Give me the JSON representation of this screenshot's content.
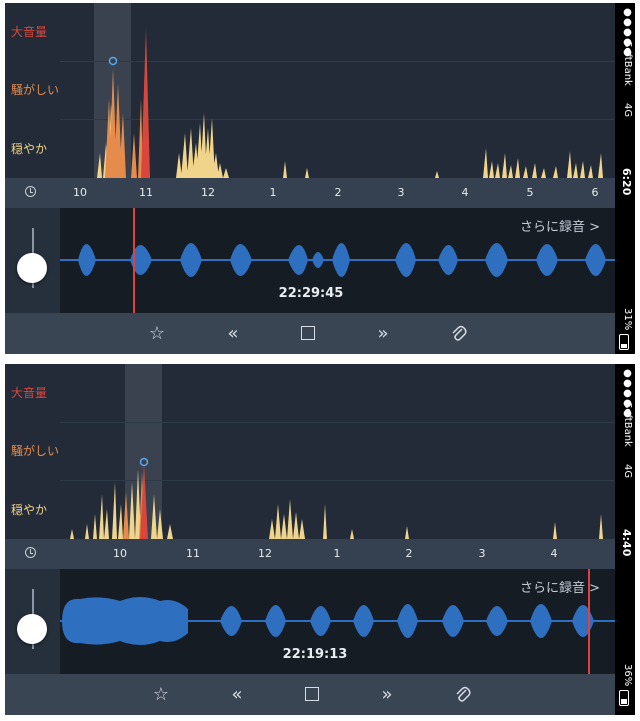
{
  "screens": [
    {
      "levels": {
        "loud": "大音量",
        "noisy": "騒がしい",
        "calm": "穏やか"
      },
      "timeline": [
        "10",
        "11",
        "12",
        "1",
        "2",
        "3",
        "4",
        "5",
        "6"
      ],
      "more_recording": "さらに録音 >",
      "timecode": "22:29:45",
      "status": {
        "carrier": "SoftBank",
        "network": "4G",
        "time": "6:20",
        "battery": "31%",
        "signal_dots": "●●●●●"
      }
    },
    {
      "levels": {
        "loud": "大音量",
        "noisy": "騒がしい",
        "calm": "穏やか"
      },
      "timeline": [
        "10",
        "11",
        "12",
        "1",
        "2",
        "3",
        "4"
      ],
      "more_recording": "さらに録音 >",
      "timecode": "22:19:13",
      "status": {
        "carrier": "SoftBank",
        "network": "4G",
        "time": "4:40",
        "battery": "36%",
        "signal_dots": "●●●●●"
      }
    }
  ],
  "colors": {
    "loud": "#d9473c",
    "noisy": "#e58c4d",
    "calm": "#f0d48c",
    "wave": "#2e6fbf",
    "playhead": "#e0413a",
    "marker": "#5aa9f0"
  },
  "toolbar_icons": [
    "star-icon",
    "rewind-icon",
    "stop-icon",
    "fast-forward-icon",
    "paperclip-icon"
  ]
}
